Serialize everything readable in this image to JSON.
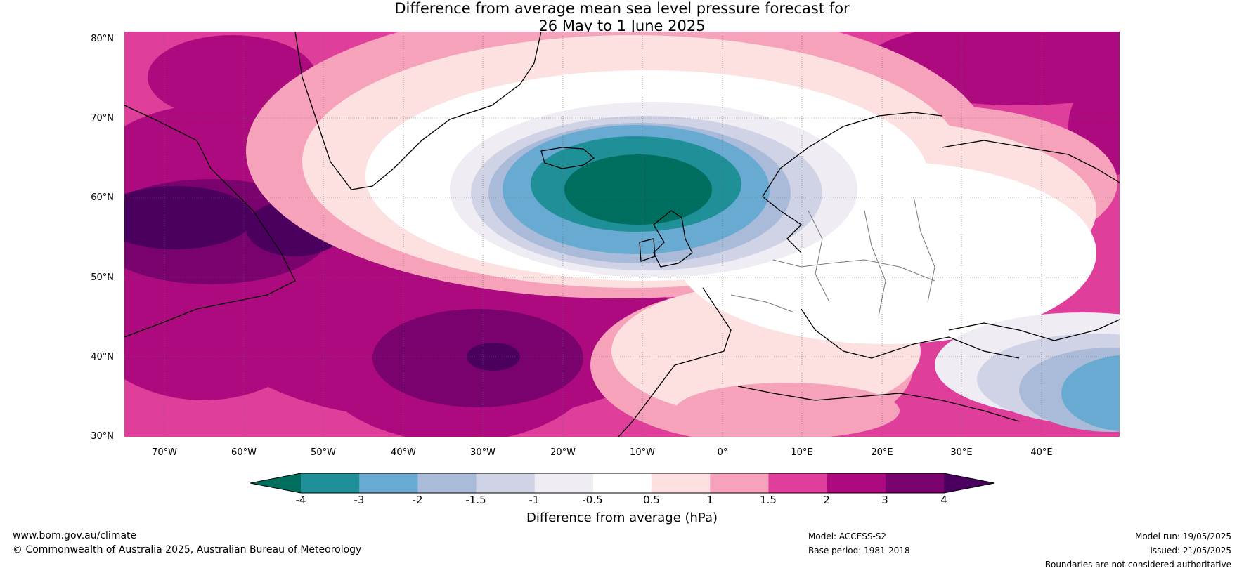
{
  "title": {
    "line1": "Difference from average mean sea level pressure forecast for",
    "line2": "26 May to 1 June 2025"
  },
  "map": {
    "lat_labels": [
      "80°N",
      "70°N",
      "60°N",
      "50°N",
      "40°N",
      "30°N"
    ],
    "lon_labels": [
      "70°W",
      "60°W",
      "50°W",
      "40°W",
      "30°W",
      "20°W",
      "10°W",
      "0°",
      "10°E",
      "20°E",
      "30°E",
      "40°E"
    ]
  },
  "colorbar": {
    "title": "Difference from average (hPa)",
    "ticks": [
      "-4",
      "-3",
      "-2",
      "-1.5",
      "-1",
      "-0.5",
      "0.5",
      "1",
      "1.5",
      "2",
      "3",
      "4"
    ],
    "colors": [
      "#006e5f",
      "#1f8f98",
      "#69aad2",
      "#a9bbd9",
      "#d0d2e6",
      "#efecf4",
      "#ffffff",
      "#fde0e0",
      "#f6a2bb",
      "#df3e9b",
      "#ae0a7f",
      "#7a026e",
      "#4b005f"
    ]
  },
  "footer": {
    "website": "www.bom.gov.au/climate",
    "copyright": "© Commonwealth of Australia 2025, Australian Bureau of Meteorology",
    "model": "Model: ACCESS-S2",
    "base_period": "Base period: 1981-2018",
    "model_run": "Model run: 19/05/2025",
    "issued": "Issued: 21/05/2025",
    "disclaimer": "Boundaries are not considered authoritative"
  }
}
